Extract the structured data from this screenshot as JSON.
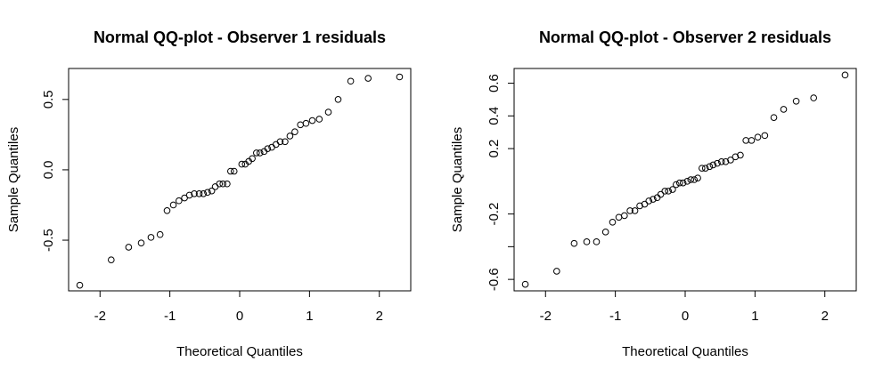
{
  "chart_data": [
    {
      "type": "scatter",
      "title": "Normal QQ-plot - Observer 1 residuals",
      "xlabel": "Theoretical Quantiles",
      "ylabel": "Sample Quantiles",
      "xlim": [
        -2.45,
        2.45
      ],
      "ylim": [
        -0.86,
        0.72
      ],
      "xticks": [
        -2,
        -1,
        0,
        1,
        2
      ],
      "xtick_labels": [
        "-2",
        "-1",
        "0",
        "1",
        "2"
      ],
      "yticks": [
        -0.5,
        0.0,
        0.5
      ],
      "ytick_labels": [
        "-0.5",
        "0.0",
        "0.5"
      ],
      "grid": false,
      "legend": "none",
      "series": [
        {
          "x": [
            -2.29,
            -1.84,
            -1.59,
            -1.41,
            -1.27,
            -1.14,
            -1.04,
            -0.95,
            -0.87,
            -0.79,
            -0.72,
            -0.65,
            -0.58,
            -0.52,
            -0.46,
            -0.4,
            -0.35,
            -0.29,
            -0.24,
            -0.18,
            -0.13,
            -0.08,
            0.03,
            0.08,
            0.13,
            0.18,
            0.24,
            0.29,
            0.35,
            0.4,
            0.46,
            0.52,
            0.58,
            0.65,
            0.72,
            0.79,
            0.87,
            0.95,
            1.04,
            1.14,
            1.27,
            1.41,
            1.59,
            1.84,
            2.29
          ],
          "y": [
            -0.82,
            -0.64,
            -0.55,
            -0.52,
            -0.48,
            -0.46,
            -0.29,
            -0.25,
            -0.22,
            -0.2,
            -0.18,
            -0.17,
            -0.17,
            -0.17,
            -0.16,
            -0.15,
            -0.12,
            -0.1,
            -0.1,
            -0.1,
            -0.01,
            -0.01,
            0.04,
            0.04,
            0.06,
            0.08,
            0.12,
            0.12,
            0.13,
            0.15,
            0.16,
            0.18,
            0.2,
            0.2,
            0.24,
            0.27,
            0.32,
            0.33,
            0.35,
            0.36,
            0.41,
            0.5,
            0.63,
            0.65,
            0.66
          ]
        }
      ]
    },
    {
      "type": "scatter",
      "title": "Normal QQ-plot - Observer 2 residuals",
      "xlabel": "Theoretical Quantiles",
      "ylabel": "Sample Quantiles",
      "xlim": [
        -2.45,
        2.45
      ],
      "ylim": [
        -0.67,
        0.69
      ],
      "xticks": [
        -2,
        -1,
        0,
        1,
        2
      ],
      "xtick_labels": [
        "-2",
        "-1",
        "0",
        "1",
        "2"
      ],
      "yticks": [
        -0.6,
        -0.4,
        -0.2,
        0.2,
        0.4,
        0.6
      ],
      "ytick_labels": [
        "-0.6",
        "",
        "-0.2",
        "0.2",
        "0.4",
        "0.6"
      ],
      "grid": false,
      "legend": "none",
      "series": [
        {
          "x": [
            -2.29,
            -1.84,
            -1.59,
            -1.41,
            -1.27,
            -1.14,
            -1.04,
            -0.95,
            -0.87,
            -0.79,
            -0.72,
            -0.65,
            -0.58,
            -0.52,
            -0.46,
            -0.4,
            -0.35,
            -0.29,
            -0.24,
            -0.18,
            -0.13,
            -0.08,
            -0.03,
            0.03,
            0.08,
            0.13,
            0.18,
            0.24,
            0.29,
            0.35,
            0.4,
            0.46,
            0.52,
            0.58,
            0.65,
            0.72,
            0.79,
            0.87,
            0.95,
            1.04,
            1.14,
            1.27,
            1.41,
            1.59,
            1.84,
            2.29
          ],
          "y": [
            -0.63,
            -0.55,
            -0.38,
            -0.37,
            -0.37,
            -0.31,
            -0.25,
            -0.22,
            -0.21,
            -0.18,
            -0.18,
            -0.15,
            -0.14,
            -0.12,
            -0.11,
            -0.1,
            -0.08,
            -0.06,
            -0.06,
            -0.05,
            -0.02,
            -0.01,
            -0.01,
            0.0,
            0.01,
            0.01,
            0.02,
            0.08,
            0.08,
            0.09,
            0.1,
            0.11,
            0.12,
            0.12,
            0.13,
            0.15,
            0.16,
            0.25,
            0.25,
            0.27,
            0.28,
            0.39,
            0.44,
            0.49,
            0.51,
            0.65
          ]
        }
      ]
    }
  ]
}
